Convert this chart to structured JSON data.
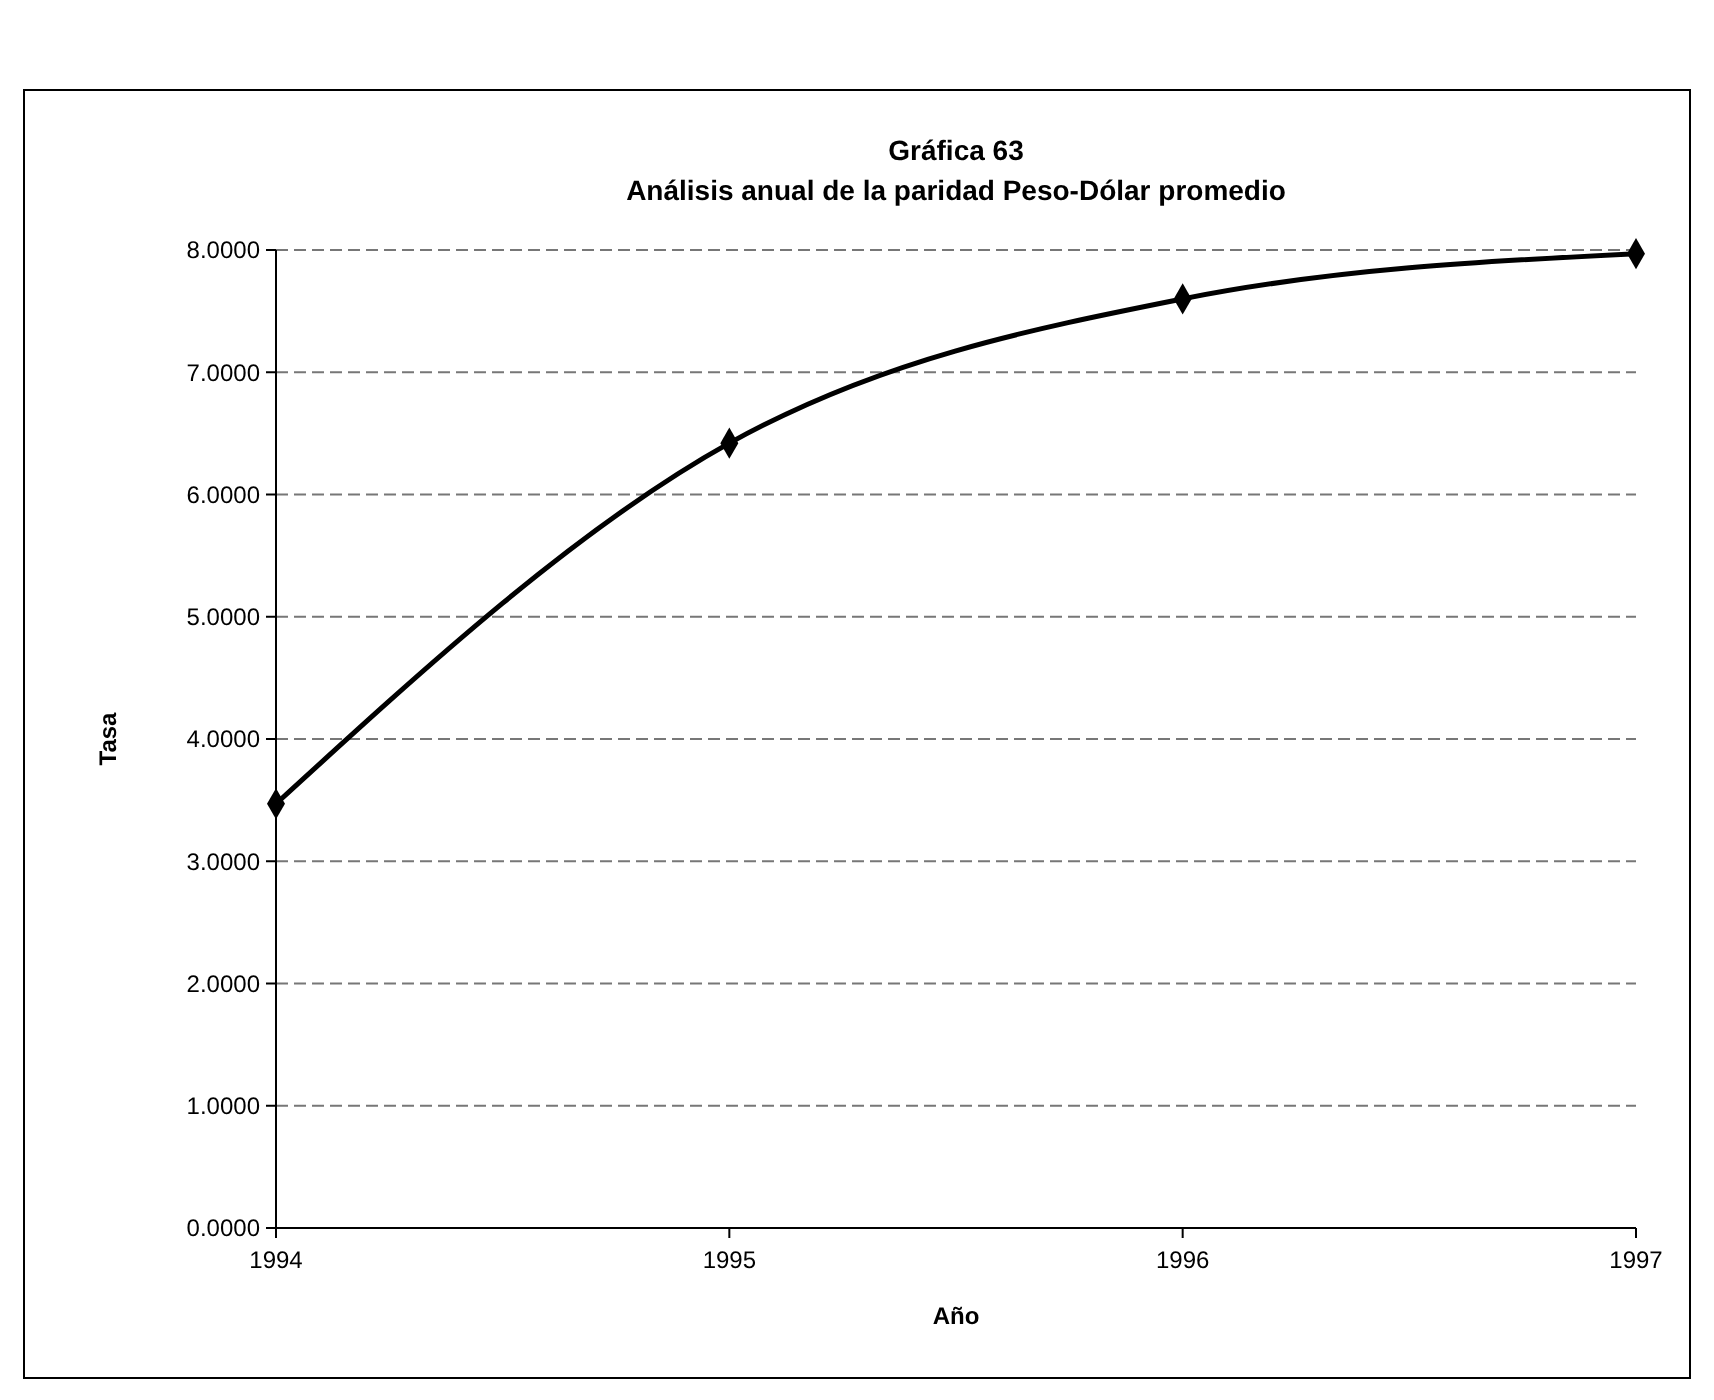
{
  "chart_data": {
    "type": "line",
    "title": "Gráfica 63",
    "subtitle": "Análisis anual de la paridad Peso-Dólar promedio",
    "xlabel": "Año",
    "ylabel": "Tasa",
    "x": [
      1994,
      1995,
      1996,
      1997
    ],
    "series": [
      {
        "color": "#000000",
        "values": [
          3.47,
          6.42,
          7.6,
          7.97
        ]
      }
    ],
    "xlim": [
      1994,
      1997
    ],
    "xticks": [
      1994,
      1995,
      1996,
      1997
    ],
    "ylim": [
      0,
      8
    ],
    "yticks": [
      {
        "value": 0,
        "label": "0.0000"
      },
      {
        "value": 1,
        "label": "1.0000"
      },
      {
        "value": 2,
        "label": "2.0000"
      },
      {
        "value": 3,
        "label": "3.0000"
      },
      {
        "value": 4,
        "label": "4.0000"
      },
      {
        "value": 5,
        "label": "5.0000"
      },
      {
        "value": 6,
        "label": "6.0000"
      },
      {
        "value": 7,
        "label": "7.0000"
      },
      {
        "value": 8,
        "label": "8.0000"
      }
    ],
    "grid": "y",
    "marker": "diamond",
    "line_style": "solid"
  }
}
